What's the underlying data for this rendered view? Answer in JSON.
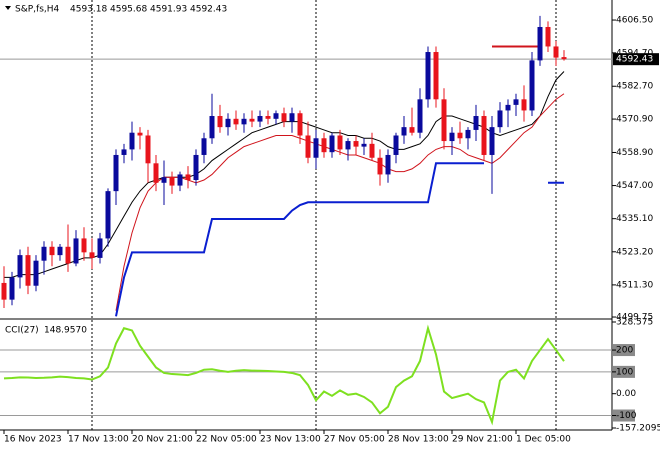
{
  "chart_data": [
    {
      "type": "candlestick",
      "symbol": "S&P,fs,H4",
      "categories": [
        "16 Nov 2023",
        null,
        null,
        null,
        null,
        null,
        null,
        null,
        "17 Nov 13:00",
        null,
        null,
        null,
        null,
        null,
        null,
        null,
        "20 Nov 21:00",
        null,
        null,
        null,
        null,
        null,
        null,
        null,
        "22 Nov 05:00",
        null,
        null,
        null,
        null,
        null,
        null,
        null,
        "23 Nov 13:00",
        null,
        null,
        null,
        null,
        null,
        null,
        null,
        "27 Nov 05:00",
        null,
        null,
        null,
        null,
        null,
        null,
        null,
        "28 Nov 13:00",
        null,
        null,
        null,
        null,
        null,
        null,
        null,
        "29 Nov 21:00",
        null,
        null,
        null,
        null,
        null,
        null,
        null,
        "1 Dec 05:00",
        null,
        null,
        null,
        null,
        null,
        null
      ],
      "open": [
        4512,
        4506,
        4514,
        4522,
        4511,
        4520,
        4525,
        4522,
        4525,
        4519,
        4528,
        4523,
        4521,
        4528,
        4545,
        4558,
        4560,
        4566,
        4565,
        4555,
        4548,
        4550,
        4547,
        4551,
        4549,
        4558,
        4564,
        4572,
        4568,
        4571,
        4569,
        4571,
        4570,
        4572,
        4571,
        4573,
        4570,
        4573,
        4565,
        4557,
        4564,
        4559,
        4565,
        4560,
        4563,
        4561,
        4562,
        4557,
        4551,
        4558,
        4565,
        4568,
        4566,
        4578,
        4595,
        4578,
        4563,
        4566,
        4564,
        4567,
        4572,
        4558,
        4568,
        4574,
        4576,
        4578,
        4574,
        4592,
        4604,
        4597,
        4593.18
      ],
      "high": [
        4518,
        4516,
        4524,
        4525,
        4522,
        4527,
        4527,
        4526,
        4533,
        4531,
        4532,
        4528,
        4530,
        4546,
        4560,
        4562,
        4570,
        4568,
        4567,
        4558,
        4556,
        4552,
        4552,
        4554,
        4560,
        4566,
        4580,
        4576,
        4573,
        4574,
        4573,
        4574,
        4574,
        4574,
        4574,
        4575,
        4575,
        4574,
        4570,
        4567,
        4566,
        4566,
        4567,
        4564,
        4565,
        4564,
        4566,
        4560,
        4560,
        4566,
        4572,
        4575,
        4582,
        4597,
        4597,
        4582,
        4568,
        4570,
        4568,
        4576,
        4574,
        4572,
        4577,
        4578,
        4580,
        4583,
        4595,
        4608,
        4606,
        4599,
        4595.68
      ],
      "low": [
        4503,
        4504,
        4510,
        4508,
        4509,
        4515,
        4518,
        4520,
        4516,
        4518,
        4520,
        4517,
        4519,
        4525,
        4540,
        4555,
        4556,
        4560,
        4548,
        4545,
        4540,
        4544,
        4545,
        4546,
        4547,
        4555,
        4562,
        4566,
        4565,
        4567,
        4566,
        4568,
        4568,
        4569,
        4569,
        4568,
        4566,
        4562,
        4555,
        4553,
        4557,
        4557,
        4558,
        4556,
        4558,
        4558,
        4556,
        4547,
        4548,
        4555,
        4562,
        4565,
        4564,
        4575,
        4575,
        4560,
        4558,
        4562,
        4560,
        4563,
        4556,
        4544,
        4566,
        4568,
        4572,
        4570,
        4572,
        4590,
        4595,
        4590,
        4591.93
      ],
      "close": [
        4506,
        4514,
        4522,
        4511,
        4520,
        4525,
        4522,
        4525,
        4519,
        4528,
        4523,
        4521,
        4528,
        4545,
        4558,
        4560,
        4566,
        4565,
        4555,
        4548,
        4550,
        4547,
        4551,
        4549,
        4558,
        4564,
        4572,
        4568,
        4571,
        4569,
        4571,
        4570,
        4572,
        4571,
        4573,
        4570,
        4573,
        4565,
        4557,
        4564,
        4559,
        4565,
        4560,
        4563,
        4561,
        4562,
        4557,
        4551,
        4558,
        4565,
        4568,
        4566,
        4578,
        4595,
        4578,
        4563,
        4566,
        4564,
        4567,
        4572,
        4558,
        4568,
        4574,
        4576,
        4578,
        4574,
        4592,
        4604,
        4597,
        4593,
        4592.43
      ],
      "up_color": "#0a0a9c",
      "down_color": "#e8141c",
      "overlays": [
        {
          "color": "#000000",
          "values": [
            4514,
            4514,
            4515,
            4515,
            4515,
            4516,
            4517,
            4518,
            4519,
            4520,
            4521,
            4521,
            4522,
            4526,
            4531,
            4536,
            4541,
            4545,
            4548,
            4549,
            4550,
            4550,
            4550,
            4550,
            4551,
            4553,
            4556,
            4558,
            4560,
            4562,
            4564,
            4566,
            4567,
            4568,
            4569,
            4570,
            4570,
            4570,
            4569,
            4568,
            4567,
            4566,
            4566,
            4565,
            4565,
            4564,
            4564,
            4563,
            4561,
            4560,
            4560,
            4561,
            4562,
            4565,
            4570,
            4572,
            4572,
            4571,
            4570,
            4569,
            4568,
            4566,
            4565,
            4566,
            4567,
            4568,
            4569,
            4572,
            4579,
            4585,
            4588
          ]
        },
        {
          "color": "#d0141c",
          "values": [
            null,
            null,
            null,
            null,
            null,
            null,
            null,
            null,
            null,
            null,
            null,
            null,
            null,
            null,
            4502,
            4518,
            4530,
            4539,
            4545,
            4548,
            4550,
            4550,
            4550,
            4549,
            4548,
            4549,
            4551,
            4554,
            4557,
            4559,
            4561,
            4562,
            4563,
            4564,
            4565,
            4565,
            4565,
            4564,
            4563,
            4562,
            4561,
            4560,
            4559,
            4558,
            4558,
            4557,
            4556,
            4555,
            4553,
            4552,
            4552,
            4553,
            4555,
            4558,
            4560,
            4561,
            4561,
            4560,
            4558,
            4557,
            4556,
            4555,
            4557,
            4560,
            4563,
            4566,
            4568,
            4572,
            4575,
            4578,
            4580
          ]
        },
        {
          "color": "#0a1fd0",
          "values": [
            null,
            null,
            null,
            null,
            null,
            null,
            null,
            null,
            null,
            null,
            null,
            null,
            null,
            null,
            4500,
            4514,
            4523,
            4523,
            4523,
            4523,
            4523,
            4523,
            4523,
            4523,
            4523,
            4523,
            4535,
            4535,
            4535,
            4535,
            4535,
            4535,
            4535,
            4535,
            4535,
            4535,
            4538,
            4540,
            4541,
            4541,
            4541,
            4541,
            4541,
            4541,
            4541,
            4541,
            4541,
            4541,
            4541,
            4541,
            4541,
            4541,
            4541,
            4541,
            4555,
            4555,
            4555,
            4555,
            4555,
            4555,
            4555,
            null,
            null,
            null,
            null,
            null,
            null,
            null,
            4548,
            4548,
            4548
          ]
        },
        {
          "color": "#d0141c",
          "values": [
            null,
            null,
            null,
            null,
            null,
            null,
            null,
            null,
            null,
            null,
            null,
            null,
            null,
            null,
            null,
            null,
            null,
            null,
            null,
            null,
            null,
            null,
            null,
            null,
            null,
            null,
            null,
            null,
            null,
            null,
            null,
            null,
            null,
            null,
            null,
            null,
            null,
            null,
            null,
            null,
            null,
            null,
            null,
            null,
            null,
            null,
            null,
            null,
            null,
            null,
            null,
            null,
            null,
            null,
            null,
            null,
            null,
            null,
            null,
            null,
            null,
            4597,
            4597,
            4597,
            4597,
            4597,
            4597,
            4597,
            null,
            null,
            null
          ]
        }
      ],
      "ylim": [
        4499.4,
        4613.7
      ],
      "yticks": [
        {
          "value": 4606.5,
          "label": "4606.50"
        },
        {
          "value": 4594.7,
          "label": "4594.70"
        },
        {
          "value": 4582.7,
          "label": "4582.70"
        },
        {
          "value": 4570.9,
          "label": "4570.90"
        },
        {
          "value": 4558.9,
          "label": "4558.90"
        },
        {
          "value": 4547,
          "label": "4547.00"
        },
        {
          "value": 4535.1,
          "label": "4535.10"
        },
        {
          "value": 4523.2,
          "label": "4523.20"
        },
        {
          "value": 4511.3,
          "label": "4511.30"
        },
        {
          "value": 4499.75,
          "label": "4499.75"
        }
      ]
    },
    {
      "type": "line",
      "name": "CCI(27)",
      "value_label": "148.9570",
      "color": "#7ee020",
      "values": [
        70,
        72,
        75,
        74,
        72,
        73,
        75,
        78,
        76,
        72,
        70,
        65,
        80,
        120,
        230,
        300,
        290,
        220,
        170,
        120,
        95,
        90,
        88,
        85,
        95,
        110,
        112,
        105,
        100,
        105,
        108,
        106,
        105,
        104,
        102,
        100,
        95,
        85,
        40,
        -30,
        10,
        -10,
        15,
        -5,
        0,
        -15,
        -40,
        -90,
        -60,
        30,
        60,
        80,
        150,
        300,
        180,
        10,
        -20,
        -10,
        0,
        -25,
        -40,
        -130,
        60,
        100,
        110,
        70,
        150,
        200,
        250,
        200,
        148.957
      ],
      "ylim": [
        -157.2095,
        328.575
      ],
      "yticks": [
        328.575,
        200,
        100,
        {
          "value": 0,
          "label": "0.00"
        },
        -100,
        -157.2095
      ]
    }
  ]
}
